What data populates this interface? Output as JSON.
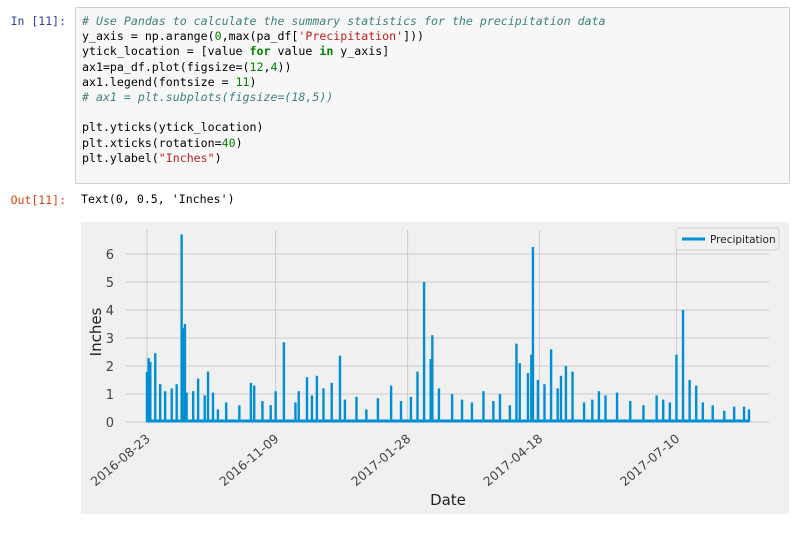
{
  "input_prompt": "In [11]:",
  "output_prompt": "Out[11]:",
  "code_lines": [
    [
      {
        "t": "# Use Pandas to calculate the summary statistics for the precipitation data",
        "c": "comment"
      }
    ],
    [
      {
        "t": "y_axis = np.arange(",
        "c": ""
      },
      {
        "t": "0",
        "c": "num"
      },
      {
        "t": ",max(pa_df[",
        "c": ""
      },
      {
        "t": "'Precipitation'",
        "c": "str"
      },
      {
        "t": "]))",
        "c": ""
      }
    ],
    [
      {
        "t": "ytick_location = [value ",
        "c": ""
      },
      {
        "t": "for",
        "c": "kw"
      },
      {
        "t": " value ",
        "c": ""
      },
      {
        "t": "in",
        "c": "kw"
      },
      {
        "t": " y_axis]",
        "c": ""
      }
    ],
    [
      {
        "t": "ax1=pa_df.plot(figsize=(",
        "c": ""
      },
      {
        "t": "12",
        "c": "num"
      },
      {
        "t": ",",
        "c": ""
      },
      {
        "t": "4",
        "c": "num"
      },
      {
        "t": "))",
        "c": ""
      }
    ],
    [
      {
        "t": "ax1.legend(fontsize = ",
        "c": ""
      },
      {
        "t": "11",
        "c": "num"
      },
      {
        "t": ")",
        "c": ""
      }
    ],
    [
      {
        "t": "# ax1 = plt.subplots(figsize=(18,5))",
        "c": "comment"
      }
    ],
    [
      {
        "t": "",
        "c": ""
      }
    ],
    [
      {
        "t": "plt.yticks(ytick_location)",
        "c": ""
      }
    ],
    [
      {
        "t": "plt.xticks(rotation=",
        "c": ""
      },
      {
        "t": "40",
        "c": "num"
      },
      {
        "t": ")",
        "c": ""
      }
    ],
    [
      {
        "t": "plt.ylabel(",
        "c": ""
      },
      {
        "t": "\"Inches\"",
        "c": "str"
      },
      {
        "t": ")",
        "c": ""
      }
    ]
  ],
  "output_text": "Text(0, 0.5, 'Inches')",
  "colors": {
    "line": "#008fd5",
    "plot_bg": "#f0f0f0",
    "grid": "#cbcbcb",
    "prompt_in": "#303f9f",
    "prompt_out": "#d84315"
  },
  "chart_data": {
    "type": "bar",
    "xlabel": "Date",
    "ylabel": "Inches",
    "legend": "Precipitation",
    "legend_position": "top-right",
    "grid": true,
    "ylim": [
      0,
      7
    ],
    "yticks": [
      0,
      1,
      2,
      3,
      4,
      5,
      6
    ],
    "xtick_labels": [
      "2016-08-23",
      "2016-11-09",
      "2017-01-28",
      "2017-04-18",
      "2017-07-10"
    ],
    "series": [
      {
        "name": "Precipitation",
        "x": [
          "2016-08-23",
          "2016-08-24",
          "2016-08-25",
          "2016-08-28",
          "2016-08-31",
          "2016-09-03",
          "2016-09-07",
          "2016-09-10",
          "2016-09-13",
          "2016-09-14",
          "2016-09-15",
          "2016-09-16",
          "2016-09-20",
          "2016-09-23",
          "2016-09-27",
          "2016-09-29",
          "2016-10-02",
          "2016-10-05",
          "2016-10-10",
          "2016-10-18",
          "2016-10-25",
          "2016-10-27",
          "2016-11-01",
          "2016-11-06",
          "2016-11-09",
          "2016-11-14",
          "2016-11-21",
          "2016-11-23",
          "2016-11-28",
          "2016-12-01",
          "2016-12-04",
          "2016-12-08",
          "2016-12-13",
          "2016-12-18",
          "2016-12-21",
          "2016-12-28",
          "2017-01-03",
          "2017-01-10",
          "2017-01-18",
          "2017-01-24",
          "2017-01-30",
          "2017-02-03",
          "2017-02-07",
          "2017-02-11",
          "2017-02-12",
          "2017-02-16",
          "2017-02-24",
          "2017-03-02",
          "2017-03-08",
          "2017-03-15",
          "2017-03-21",
          "2017-03-25",
          "2017-03-31",
          "2017-04-04",
          "2017-04-06",
          "2017-04-11",
          "2017-04-13",
          "2017-04-14",
          "2017-04-17",
          "2017-04-21",
          "2017-04-25",
          "2017-04-29",
          "2017-05-01",
          "2017-05-04",
          "2017-05-08",
          "2017-05-15",
          "2017-05-20",
          "2017-05-24",
          "2017-05-28",
          "2017-06-04",
          "2017-06-12",
          "2017-06-20",
          "2017-06-28",
          "2017-07-02",
          "2017-07-06",
          "2017-07-10",
          "2017-07-14",
          "2017-07-18",
          "2017-07-22",
          "2017-07-26",
          "2017-08-01",
          "2017-08-08",
          "2017-08-14",
          "2017-08-20",
          "2017-08-23"
        ],
        "values": [
          1.79,
          2.28,
          2.15,
          2.46,
          1.35,
          1.1,
          1.2,
          1.35,
          6.7,
          3.35,
          3.5,
          1.05,
          1.1,
          1.55,
          0.95,
          1.8,
          1.05,
          0.45,
          0.7,
          0.6,
          1.4,
          1.3,
          0.75,
          0.6,
          1.1,
          2.85,
          0.7,
          1.1,
          1.6,
          0.95,
          1.65,
          1.2,
          1.4,
          2.37,
          0.8,
          0.9,
          0.45,
          0.85,
          1.3,
          0.75,
          0.9,
          1.8,
          5.0,
          2.25,
          3.1,
          1.2,
          1.0,
          0.8,
          0.7,
          1.1,
          0.75,
          1.0,
          0.6,
          2.8,
          2.1,
          1.75,
          2.4,
          6.25,
          1.5,
          1.35,
          2.6,
          1.2,
          1.65,
          2.0,
          1.8,
          0.7,
          0.8,
          1.1,
          0.95,
          1.05,
          0.75,
          0.6,
          0.95,
          0.8,
          0.7,
          2.4,
          4.0,
          1.5,
          1.3,
          0.7,
          0.6,
          0.4,
          0.55,
          0.55,
          0.45
        ]
      }
    ]
  }
}
